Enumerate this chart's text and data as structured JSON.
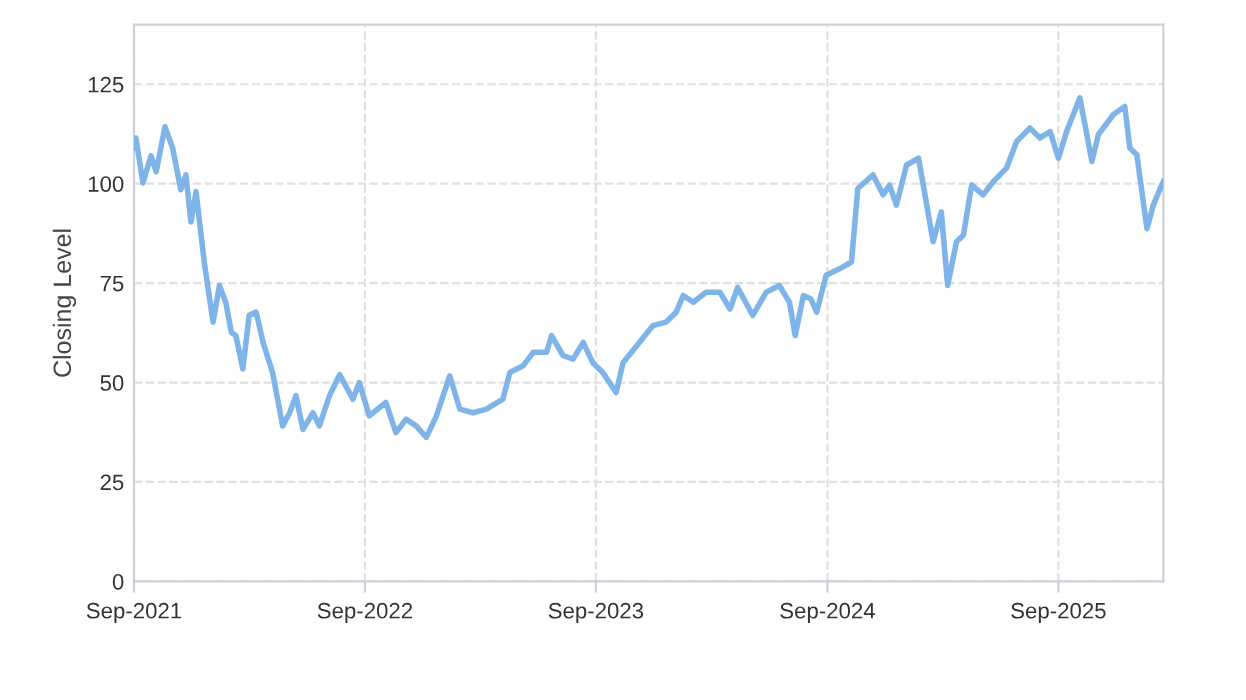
{
  "chart_data": {
    "type": "line",
    "ylabel": "Closing Level",
    "ylim": [
      0,
      140
    ],
    "yticks": [
      0,
      25,
      50,
      75,
      100,
      125
    ],
    "xlim": [
      "2021-09-01",
      "2026-02-14"
    ],
    "xticks": [
      {
        "value": "2021-09-01",
        "label": "Sep-2021"
      },
      {
        "value": "2022-09-01",
        "label": "Sep-2022"
      },
      {
        "value": "2023-09-01",
        "label": "Sep-2023"
      },
      {
        "value": "2024-09-01",
        "label": "Sep-2024"
      },
      {
        "value": "2025-09-01",
        "label": "Sep-2025"
      }
    ],
    "grid": true,
    "legend": false,
    "marker": "none",
    "line_style": "solid",
    "series": [
      {
        "color": "#7eb4e8",
        "x": [
          "2021-09-01",
          "2021-09-04",
          "2021-09-15",
          "2021-09-28",
          "2021-10-06",
          "2021-10-20",
          "2021-11-01",
          "2021-11-14",
          "2021-11-22",
          "2021-11-30",
          "2021-12-08",
          "2021-12-21",
          "2022-01-04",
          "2022-01-14",
          "2022-01-24",
          "2022-02-02",
          "2022-02-09",
          "2022-02-20",
          "2022-03-02",
          "2022-03-13",
          "2022-03-24",
          "2022-04-08",
          "2022-04-24",
          "2022-05-05",
          "2022-05-15",
          "2022-05-26",
          "2022-06-11",
          "2022-06-21",
          "2022-07-07",
          "2022-07-23",
          "2022-08-13",
          "2022-08-23",
          "2022-09-08",
          "2022-10-04",
          "2022-10-20",
          "2022-11-05",
          "2022-11-21",
          "2022-12-07",
          "2022-12-23",
          "2023-01-13",
          "2023-01-29",
          "2023-02-19",
          "2023-03-12",
          "2023-04-07",
          "2023-04-18",
          "2023-05-09",
          "2023-05-25",
          "2023-06-15",
          "2023-06-23",
          "2023-07-11",
          "2023-07-27",
          "2023-08-12",
          "2023-08-27",
          "2023-09-12",
          "2023-10-03",
          "2023-10-14",
          "2023-11-09",
          "2023-11-30",
          "2023-12-21",
          "2024-01-06",
          "2024-01-17",
          "2024-02-02",
          "2024-02-22",
          "2024-03-15",
          "2024-03-31",
          "2024-04-12",
          "2024-05-06",
          "2024-05-27",
          "2024-06-17",
          "2024-07-03",
          "2024-07-12",
          "2024-07-25",
          "2024-08-06",
          "2024-08-15",
          "2024-08-30",
          "2024-09-20",
          "2024-10-09",
          "2024-10-19",
          "2024-11-12",
          "2024-11-28",
          "2024-12-08",
          "2024-12-19",
          "2025-01-04",
          "2025-01-23",
          "2025-02-04",
          "2025-02-15",
          "2025-02-28",
          "2025-03-10",
          "2025-03-24",
          "2025-04-04",
          "2025-04-17",
          "2025-05-05",
          "2025-05-21",
          "2025-06-11",
          "2025-06-27",
          "2025-07-18",
          "2025-08-03",
          "2025-08-19",
          "2025-09-01",
          "2025-09-14",
          "2025-10-05",
          "2025-10-24",
          "2025-11-03",
          "2025-11-27",
          "2025-12-15",
          "2025-12-23",
          "2026-01-03",
          "2026-01-19",
          "2026-01-29",
          "2026-02-09",
          "2026-02-14"
        ],
        "values": [
          109,
          111.5,
          100.2,
          107,
          103,
          114.3,
          109,
          98.5,
          102.2,
          90.4,
          98,
          80.3,
          65.2,
          74.4,
          70.2,
          62.6,
          61.8,
          53.4,
          66.9,
          67.7,
          60.1,
          52.5,
          39.1,
          42.4,
          46.7,
          38.2,
          42.4,
          39.1,
          46.7,
          52,
          45.8,
          50,
          41.6,
          45,
          37.4,
          40.8,
          39.1,
          36.2,
          41.6,
          51.7,
          43.3,
          42.4,
          43.3,
          45.8,
          52.5,
          54.2,
          57.6,
          57.6,
          61.8,
          56.8,
          55.9,
          60.1,
          55,
          52.5,
          47.5,
          55,
          60.1,
          64.3,
          65.2,
          67.7,
          71.9,
          70.2,
          72.7,
          72.7,
          68.5,
          73.9,
          66.9,
          72.7,
          74.4,
          70.2,
          61.8,
          71.9,
          71,
          67.7,
          77,
          78.6,
          80.3,
          98.8,
          102.2,
          97.2,
          99.7,
          94.6,
          104.7,
          106.4,
          95.5,
          85.4,
          92.9,
          74.4,
          85.4,
          87.1,
          99.7,
          97.2,
          100.5,
          103.9,
          110.6,
          114,
          111.5,
          113.1,
          106.4,
          113.1,
          121.6,
          105.6,
          112.3,
          117.4,
          119.4,
          109,
          107.3,
          88.7,
          94.6,
          98.8,
          100.5
        ]
      }
    ]
  }
}
